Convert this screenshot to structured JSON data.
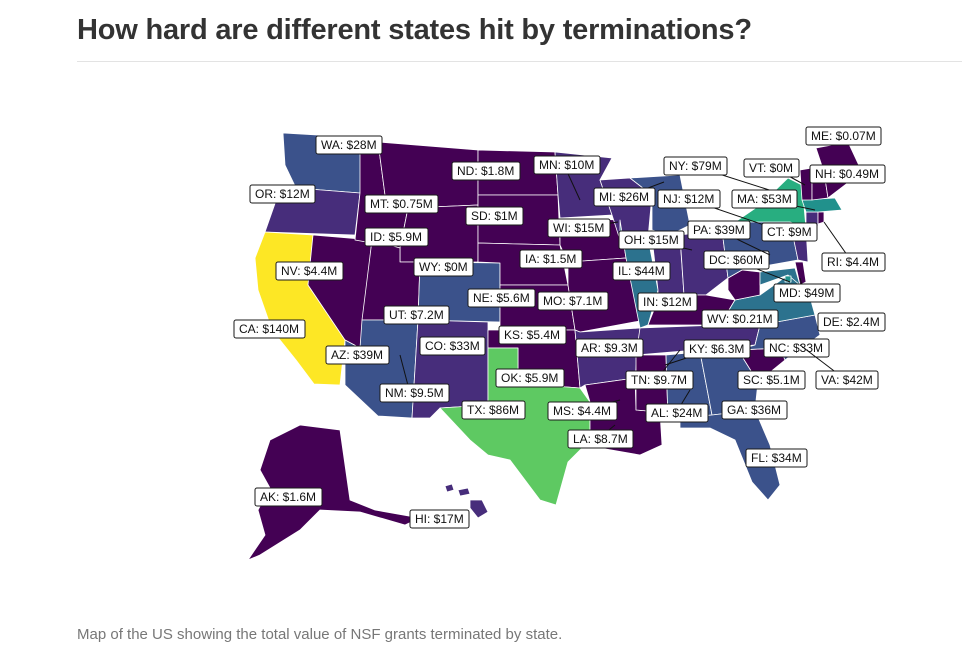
{
  "title": "How hard are different states hit by terminations?",
  "caption": "Map of the US showing the total value of NSF grants terminated by state.",
  "colors": {
    "dark": "#440154",
    "purple": "#472d7b",
    "indigo": "#3b528b",
    "blue": "#2c728e",
    "teal": "#21918c",
    "green": "#28ae80",
    "lightgreen": "#5ec962",
    "yellow": "#fde725",
    "white": "#ffffff"
  },
  "states": [
    {
      "code": "WA",
      "label": "WA: $28M",
      "color": "#3b528b"
    },
    {
      "code": "OR",
      "label": "OR: $12M",
      "color": "#472d7b"
    },
    {
      "code": "CA",
      "label": "CA: $140M",
      "color": "#fde725"
    },
    {
      "code": "NV",
      "label": "NV: $4.4M",
      "color": "#440154"
    },
    {
      "code": "ID",
      "label": "ID: $5.9M",
      "color": "#440154"
    },
    {
      "code": "MT",
      "label": "MT: $0.75M",
      "color": "#440154"
    },
    {
      "code": "WY",
      "label": "WY: $0M",
      "color": "#440154"
    },
    {
      "code": "UT",
      "label": "UT: $7.2M",
      "color": "#440154"
    },
    {
      "code": "AZ",
      "label": "AZ: $39M",
      "color": "#3b528b"
    },
    {
      "code": "CO",
      "label": "CO: $33M",
      "color": "#3b528b"
    },
    {
      "code": "NM",
      "label": "NM: $9.5M",
      "color": "#472d7b"
    },
    {
      "code": "ND",
      "label": "ND: $1.8M",
      "color": "#440154"
    },
    {
      "code": "SD",
      "label": "SD: $1M",
      "color": "#440154"
    },
    {
      "code": "NE",
      "label": "NE: $5.6M",
      "color": "#440154"
    },
    {
      "code": "KS",
      "label": "KS: $5.4M",
      "color": "#440154"
    },
    {
      "code": "OK",
      "label": "OK: $5.9M",
      "color": "#440154"
    },
    {
      "code": "TX",
      "label": "TX: $86M",
      "color": "#5ec962"
    },
    {
      "code": "MN",
      "label": "MN: $10M",
      "color": "#472d7b"
    },
    {
      "code": "IA",
      "label": "IA: $1.5M",
      "color": "#440154"
    },
    {
      "code": "MO",
      "label": "MO: $7.1M",
      "color": "#440154"
    },
    {
      "code": "AR",
      "label": "AR: $9.3M",
      "color": "#472d7b"
    },
    {
      "code": "LA",
      "label": "LA: $8.7M",
      "color": "#440154"
    },
    {
      "code": "WI",
      "label": "WI: $15M",
      "color": "#472d7b"
    },
    {
      "code": "IL",
      "label": "IL: $44M",
      "color": "#2c728e"
    },
    {
      "code": "MI",
      "label": "MI: $26M",
      "color": "#3b528b"
    },
    {
      "code": "IN",
      "label": "IN: $12M",
      "color": "#472d7b"
    },
    {
      "code": "OH",
      "label": "OH: $15M",
      "color": "#472d7b"
    },
    {
      "code": "KY",
      "label": "KY: $6.3M",
      "color": "#440154"
    },
    {
      "code": "TN",
      "label": "TN: $9.7M",
      "color": "#472d7b"
    },
    {
      "code": "MS",
      "label": "MS: $4.4M",
      "color": "#440154"
    },
    {
      "code": "AL",
      "label": "AL: $24M",
      "color": "#3b528b"
    },
    {
      "code": "GA",
      "label": "GA: $36M",
      "color": "#3b528b"
    },
    {
      "code": "FL",
      "label": "FL: $34M",
      "color": "#3b528b"
    },
    {
      "code": "SC",
      "label": "SC: $5.1M",
      "color": "#440154"
    },
    {
      "code": "NC",
      "label": "NC: $33M",
      "color": "#3b528b"
    },
    {
      "code": "VA",
      "label": "VA: $42M",
      "color": "#2c728e"
    },
    {
      "code": "WV",
      "label": "WV: $0.21M",
      "color": "#440154"
    },
    {
      "code": "DC",
      "label": "DC: $60M",
      "color": "#21918c"
    },
    {
      "code": "MD",
      "label": "MD: $49M",
      "color": "#2c728e"
    },
    {
      "code": "DE",
      "label": "DE: $2.4M",
      "color": "#440154"
    },
    {
      "code": "PA",
      "label": "PA: $39M",
      "color": "#3b528b"
    },
    {
      "code": "NJ",
      "label": "NJ: $12M",
      "color": "#472d7b"
    },
    {
      "code": "NY",
      "label": "NY: $79M",
      "color": "#28ae80"
    },
    {
      "code": "CT",
      "label": "CT: $9M",
      "color": "#472d7b"
    },
    {
      "code": "RI",
      "label": "RI: $4.4M",
      "color": "#440154"
    },
    {
      "code": "MA",
      "label": "MA: $53M",
      "color": "#21918c"
    },
    {
      "code": "VT",
      "label": "VT: $0M",
      "color": "#440154"
    },
    {
      "code": "NH",
      "label": "NH: $0.49M",
      "color": "#440154"
    },
    {
      "code": "ME",
      "label": "ME: $0.07M",
      "color": "#440154"
    },
    {
      "code": "AK",
      "label": "AK: $1.6M",
      "color": "#440154"
    },
    {
      "code": "HI",
      "label": "HI: $17M",
      "color": "#472d7b"
    }
  ]
}
